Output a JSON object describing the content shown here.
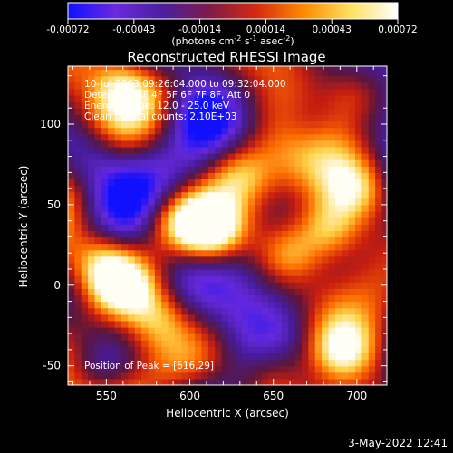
{
  "chart_data": {
    "type": "heatmap",
    "title": "Reconstructed RHESSI Image",
    "xlabel": "Heliocentric X (arcsec)",
    "ylabel": "Heliocentric Y (arcsec)",
    "xlim": [
      527,
      718
    ],
    "ylim": [
      -62,
      136
    ],
    "x_ticks": [
      "550",
      "600",
      "650",
      "700"
    ],
    "y_ticks": [
      "-50",
      "0",
      "50",
      "100"
    ],
    "colorbar": {
      "ticks": [
        "-0.00072",
        "-0.00043",
        "-0.00014",
        "0.00014",
        "0.00043",
        "0.00072"
      ],
      "units_label": "(photons cm",
      "units_sup1": "-2",
      "units_mid": " s",
      "units_sup2": "-1",
      "units_mid2": " asec",
      "units_sup3": "-2",
      "units_end": ")",
      "range": [
        -0.00072,
        0.00072
      ],
      "colors": [
        "#1010ff",
        "#6a2adf",
        "#4b1fa0",
        "#7f1a48",
        "#d42a10",
        "#ff8a00",
        "#ffe060",
        "#ffffff"
      ]
    },
    "annotations": [
      "10-Jul-2003 09:26:04.000 to 09:32:04.000",
      "Detectors: 3F 4F 5F 6F 7F 8F, Att 0",
      "Energy Range: 12.0 - 25.0 keV",
      "Clean     Total counts: 2.10E+03"
    ],
    "peak_label": "Position of Peak = [616,29]",
    "peak": [
      616,
      29
    ],
    "bright_regions": [
      {
        "x": 612,
        "y": 35,
        "level": 1.0
      },
      {
        "x": 560,
        "y": 0,
        "level": 0.85
      },
      {
        "x": 545,
        "y": 15,
        "level": 0.5
      },
      {
        "x": 590,
        "y": 40,
        "level": 0.6
      },
      {
        "x": 630,
        "y": 70,
        "level": 0.55
      },
      {
        "x": 660,
        "y": 20,
        "level": 0.6
      },
      {
        "x": 683,
        "y": 35,
        "level": 0.75
      },
      {
        "x": 700,
        "y": 60,
        "level": 0.6
      },
      {
        "x": 690,
        "y": -40,
        "level": 0.6
      },
      {
        "x": 650,
        "y": -50,
        "level": 0.45
      },
      {
        "x": 580,
        "y": -20,
        "level": 0.55
      },
      {
        "x": 560,
        "y": 125,
        "level": 0.4
      },
      {
        "x": 700,
        "y": 120,
        "level": 0.45
      },
      {
        "x": 540,
        "y": 80,
        "level": -0.35
      },
      {
        "x": 545,
        "y": -55,
        "level": -0.4
      },
      {
        "x": 670,
        "y": 100,
        "level": -0.4
      },
      {
        "x": 605,
        "y": 110,
        "level": -0.3
      }
    ]
  },
  "timestamp": "3-May-2022 12:41"
}
